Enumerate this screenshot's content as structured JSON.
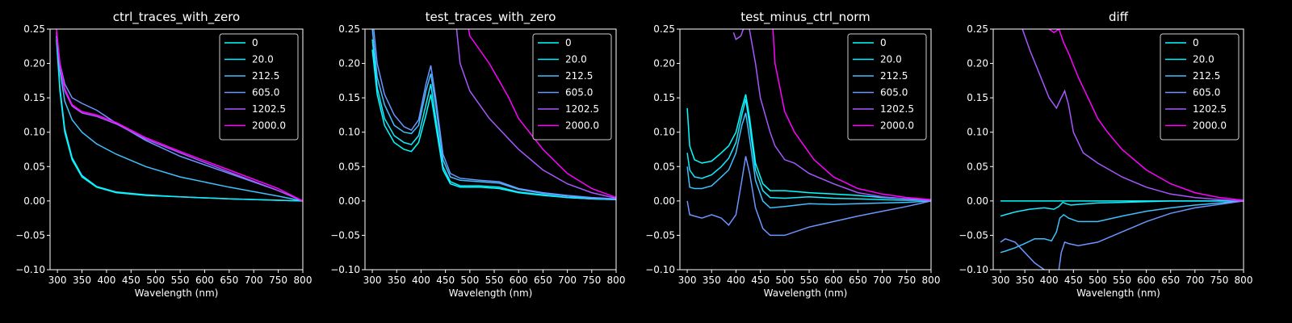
{
  "chart_data": [
    {
      "type": "line",
      "title": "ctrl_traces_with_zero",
      "xlabel": "Wavelength (nm)",
      "ylabel": "",
      "xlim": [
        285,
        800
      ],
      "ylim": [
        -0.1,
        0.25
      ],
      "xticks": [
        300,
        350,
        400,
        450,
        500,
        550,
        600,
        650,
        700,
        750,
        800
      ],
      "yticks": [
        -0.1,
        -0.05,
        0.0,
        0.05,
        0.1,
        0.15,
        0.2,
        0.25
      ],
      "ytick_labels": [
        "−0.10",
        "−0.05",
        "0.00",
        "0.05",
        "0.10",
        "0.15",
        "0.20",
        "0.25"
      ],
      "legend_position": "top-right",
      "series": [
        {
          "name": "0",
          "color": "#00ffff",
          "x": [
            298,
            305,
            315,
            330,
            350,
            380,
            420,
            480,
            550,
            650,
            750,
            800
          ],
          "y": [
            0.235,
            0.16,
            0.1,
            0.06,
            0.035,
            0.02,
            0.012,
            0.008,
            0.006,
            0.003,
            0.001,
            0.0
          ]
        },
        {
          "name": "20.0",
          "color": "#15eaff",
          "x": [
            298,
            305,
            315,
            330,
            350,
            380,
            420,
            480,
            550,
            650,
            750,
            800
          ],
          "y": [
            0.24,
            0.165,
            0.105,
            0.063,
            0.037,
            0.021,
            0.013,
            0.009,
            0.006,
            0.003,
            0.001,
            0.0
          ]
        },
        {
          "name": "212.5",
          "color": "#3fc0ff",
          "x": [
            298,
            305,
            315,
            330,
            350,
            380,
            420,
            480,
            550,
            650,
            750,
            800
          ],
          "y": [
            0.24,
            0.19,
            0.145,
            0.118,
            0.1,
            0.083,
            0.068,
            0.05,
            0.035,
            0.02,
            0.007,
            0.0
          ]
        },
        {
          "name": "605.0",
          "color": "#6996ff",
          "x": [
            298,
            305,
            315,
            330,
            350,
            380,
            420,
            480,
            550,
            650,
            750,
            800
          ],
          "y": [
            0.24,
            0.2,
            0.17,
            0.15,
            0.142,
            0.132,
            0.113,
            0.088,
            0.065,
            0.04,
            0.015,
            0.0
          ]
        },
        {
          "name": "1202.5",
          "color": "#a857ff",
          "x": [
            298,
            305,
            315,
            330,
            350,
            380,
            420,
            480,
            550,
            650,
            750,
            800
          ],
          "y": [
            0.245,
            0.195,
            0.16,
            0.138,
            0.128,
            0.123,
            0.112,
            0.09,
            0.07,
            0.042,
            0.015,
            0.0
          ]
        },
        {
          "name": "2000.0",
          "color": "#ff00ff",
          "x": [
            298,
            305,
            315,
            330,
            350,
            380,
            420,
            480,
            550,
            650,
            750,
            800
          ],
          "y": [
            0.25,
            0.2,
            0.163,
            0.14,
            0.13,
            0.125,
            0.114,
            0.092,
            0.072,
            0.045,
            0.018,
            0.0
          ]
        }
      ]
    },
    {
      "type": "line",
      "title": "test_traces_with_zero",
      "xlabel": "Wavelength (nm)",
      "ylabel": "",
      "xlim": [
        285,
        800
      ],
      "ylim": [
        -0.1,
        0.25
      ],
      "xticks": [
        300,
        350,
        400,
        450,
        500,
        550,
        600,
        650,
        700,
        750,
        800
      ],
      "yticks": [
        -0.1,
        -0.05,
        0.0,
        0.05,
        0.1,
        0.15,
        0.2,
        0.25
      ],
      "ytick_labels": [
        "−0.10",
        "−0.05",
        "0.00",
        "0.05",
        "0.10",
        "0.15",
        "0.20",
        "0.25"
      ],
      "legend_position": "top-right",
      "series": [
        {
          "name": "0",
          "color": "#00ffff",
          "x": [
            300,
            310,
            325,
            345,
            365,
            380,
            395,
            410,
            420,
            430,
            445,
            460,
            480,
            520,
            560,
            600,
            650,
            700,
            750,
            800
          ],
          "y": [
            0.22,
            0.155,
            0.11,
            0.085,
            0.075,
            0.072,
            0.085,
            0.125,
            0.155,
            0.11,
            0.045,
            0.025,
            0.02,
            0.02,
            0.018,
            0.012,
            0.008,
            0.005,
            0.003,
            0.002
          ]
        },
        {
          "name": "20.0",
          "color": "#15eaff",
          "x": [
            300,
            310,
            325,
            345,
            365,
            380,
            395,
            410,
            420,
            430,
            445,
            460,
            480,
            520,
            560,
            600,
            650,
            700,
            750,
            800
          ],
          "y": [
            0.235,
            0.165,
            0.12,
            0.095,
            0.085,
            0.082,
            0.095,
            0.14,
            0.17,
            0.12,
            0.05,
            0.028,
            0.022,
            0.022,
            0.02,
            0.013,
            0.009,
            0.005,
            0.003,
            0.002
          ]
        },
        {
          "name": "212.5",
          "color": "#3fc0ff",
          "x": [
            300,
            310,
            325,
            345,
            365,
            380,
            395,
            410,
            420,
            430,
            445,
            460,
            480,
            520,
            560,
            600,
            650,
            700,
            750,
            800
          ],
          "y": [
            0.25,
            0.18,
            0.14,
            0.11,
            0.1,
            0.098,
            0.11,
            0.16,
            0.185,
            0.14,
            0.06,
            0.035,
            0.03,
            0.028,
            0.026,
            0.017,
            0.011,
            0.007,
            0.004,
            0.002
          ]
        },
        {
          "name": "605.0",
          "color": "#6996ff",
          "x": [
            300,
            310,
            325,
            345,
            365,
            380,
            395,
            410,
            420,
            430,
            445,
            460,
            480,
            520,
            560,
            600,
            650,
            700,
            750,
            800
          ],
          "y": [
            0.27,
            0.2,
            0.155,
            0.125,
            0.108,
            0.103,
            0.118,
            0.17,
            0.197,
            0.15,
            0.068,
            0.04,
            0.033,
            0.03,
            0.028,
            0.018,
            0.012,
            0.008,
            0.005,
            0.003
          ]
        },
        {
          "name": "1202.5",
          "color": "#a857ff",
          "x": [
            470,
            480,
            500,
            520,
            540,
            560,
            580,
            600,
            650,
            700,
            750,
            800
          ],
          "y": [
            0.27,
            0.2,
            0.16,
            0.14,
            0.12,
            0.105,
            0.09,
            0.075,
            0.045,
            0.025,
            0.012,
            0.004
          ]
        },
        {
          "name": "2000.0",
          "color": "#ff00ff",
          "x": [
            495,
            500,
            520,
            540,
            560,
            580,
            600,
            650,
            700,
            750,
            800
          ],
          "y": [
            0.26,
            0.24,
            0.22,
            0.2,
            0.175,
            0.15,
            0.12,
            0.075,
            0.04,
            0.018,
            0.005
          ]
        }
      ]
    },
    {
      "type": "line",
      "title": "test_minus_ctrl_norm",
      "xlabel": "Wavelength (nm)",
      "ylabel": "",
      "xlim": [
        285,
        800
      ],
      "ylim": [
        -0.1,
        0.25
      ],
      "xticks": [
        300,
        350,
        400,
        450,
        500,
        550,
        600,
        650,
        700,
        750,
        800
      ],
      "yticks": [
        -0.1,
        -0.05,
        0.0,
        0.05,
        0.1,
        0.15,
        0.2,
        0.25
      ],
      "ytick_labels": [
        "−0.10",
        "−0.05",
        "0.00",
        "0.05",
        "0.10",
        "0.15",
        "0.20",
        "0.25"
      ],
      "legend_position": "top-right",
      "series": [
        {
          "name": "0",
          "color": "#00ffff",
          "x": [
            300,
            305,
            315,
            330,
            350,
            370,
            385,
            400,
            412,
            420,
            428,
            440,
            455,
            470,
            500,
            550,
            600,
            650,
            700,
            750,
            800
          ],
          "y": [
            0.135,
            0.08,
            0.06,
            0.055,
            0.058,
            0.07,
            0.08,
            0.1,
            0.135,
            0.155,
            0.12,
            0.055,
            0.025,
            0.015,
            0.015,
            0.012,
            0.01,
            0.008,
            0.005,
            0.003,
            0.002
          ]
        },
        {
          "name": "20.0",
          "color": "#15eaff",
          "x": [
            300,
            305,
            315,
            330,
            350,
            370,
            385,
            400,
            412,
            420,
            428,
            440,
            455,
            470,
            500,
            550,
            600,
            650,
            700,
            750,
            800
          ],
          "y": [
            0.07,
            0.045,
            0.035,
            0.033,
            0.038,
            0.05,
            0.062,
            0.085,
            0.125,
            0.148,
            0.11,
            0.045,
            0.015,
            0.005,
            0.004,
            0.006,
            0.004,
            0.003,
            0.002,
            0.001,
            0.001
          ]
        },
        {
          "name": "212.5",
          "color": "#3fc0ff",
          "x": [
            300,
            305,
            315,
            330,
            350,
            370,
            385,
            400,
            412,
            420,
            428,
            440,
            455,
            470,
            500,
            550,
            600,
            650,
            700,
            750,
            800
          ],
          "y": [
            0.05,
            0.02,
            0.018,
            0.018,
            0.022,
            0.035,
            0.045,
            0.07,
            0.11,
            0.128,
            0.09,
            0.03,
            0.0,
            -0.01,
            -0.008,
            -0.004,
            -0.005,
            -0.004,
            -0.003,
            -0.002,
            0.0
          ]
        },
        {
          "name": "605.0",
          "color": "#6996ff",
          "x": [
            300,
            305,
            315,
            330,
            350,
            370,
            385,
            400,
            412,
            420,
            428,
            440,
            455,
            470,
            500,
            550,
            600,
            650,
            700,
            750,
            800
          ],
          "y": [
            0.0,
            -0.02,
            -0.022,
            -0.025,
            -0.02,
            -0.025,
            -0.035,
            -0.02,
            0.03,
            0.065,
            0.04,
            -0.01,
            -0.04,
            -0.05,
            -0.05,
            -0.038,
            -0.03,
            -0.022,
            -0.015,
            -0.008,
            0.0
          ]
        },
        {
          "name": "1202.5",
          "color": "#a857ff",
          "x": [
            395,
            400,
            410,
            420,
            425,
            440,
            450,
            470,
            480,
            500,
            520,
            550,
            600,
            650,
            700,
            750,
            800
          ],
          "y": [
            0.245,
            0.235,
            0.24,
            0.26,
            0.26,
            0.2,
            0.15,
            0.1,
            0.08,
            0.06,
            0.055,
            0.04,
            0.025,
            0.012,
            0.006,
            0.003,
            0.001
          ]
        },
        {
          "name": "2000.0",
          "color": "#ff00ff",
          "x": [
            475,
            480,
            500,
            520,
            540,
            560,
            600,
            650,
            700,
            750,
            800
          ],
          "y": [
            0.26,
            0.2,
            0.13,
            0.1,
            0.08,
            0.06,
            0.035,
            0.018,
            0.01,
            0.005,
            0.002
          ]
        }
      ]
    },
    {
      "type": "line",
      "title": "diff",
      "xlabel": "Wavelength (nm)",
      "ylabel": "",
      "xlim": [
        285,
        800
      ],
      "ylim": [
        -0.1,
        0.25
      ],
      "xticks": [
        300,
        350,
        400,
        450,
        500,
        550,
        600,
        650,
        700,
        750,
        800
      ],
      "yticks": [
        -0.1,
        -0.05,
        0.0,
        0.05,
        0.1,
        0.15,
        0.2,
        0.25
      ],
      "ytick_labels": [
        "−0.10",
        "−0.05",
        "0.00",
        "0.05",
        "0.10",
        "0.15",
        "0.20",
        "0.25"
      ],
      "legend_position": "top-right",
      "series": [
        {
          "name": "0",
          "color": "#00ffff",
          "x": [
            300,
            800
          ],
          "y": [
            0.0,
            0.0
          ]
        },
        {
          "name": "20.0",
          "color": "#15eaff",
          "x": [
            300,
            310,
            330,
            360,
            390,
            410,
            420,
            428,
            435,
            445,
            460,
            500,
            550,
            600,
            650,
            700,
            750,
            800
          ],
          "y": [
            -0.022,
            -0.02,
            -0.016,
            -0.012,
            -0.01,
            -0.012,
            -0.008,
            -0.002,
            -0.004,
            -0.006,
            -0.005,
            -0.003,
            -0.002,
            -0.001,
            0.0,
            0.0,
            0.0,
            0.0
          ]
        },
        {
          "name": "212.5",
          "color": "#3fc0ff",
          "x": [
            300,
            310,
            330,
            350,
            370,
            390,
            405,
            415,
            422,
            430,
            440,
            460,
            500,
            550,
            600,
            650,
            700,
            750,
            800
          ],
          "y": [
            -0.075,
            -0.073,
            -0.068,
            -0.062,
            -0.055,
            -0.055,
            -0.058,
            -0.045,
            -0.025,
            -0.02,
            -0.025,
            -0.03,
            -0.03,
            -0.022,
            -0.015,
            -0.01,
            -0.006,
            -0.003,
            0.0
          ]
        },
        {
          "name": "605.0",
          "color": "#6996ff",
          "x": [
            300,
            310,
            330,
            350,
            370,
            390,
            405,
            418,
            425,
            432,
            440,
            460,
            500,
            550,
            600,
            650,
            700,
            750,
            800
          ],
          "y": [
            -0.06,
            -0.055,
            -0.06,
            -0.075,
            -0.09,
            -0.1,
            -0.11,
            -0.11,
            -0.075,
            -0.06,
            -0.062,
            -0.065,
            -0.06,
            -0.045,
            -0.03,
            -0.018,
            -0.01,
            -0.005,
            0.0
          ]
        },
        {
          "name": "1202.5",
          "color": "#a857ff",
          "x": [
            345,
            360,
            380,
            400,
            415,
            425,
            432,
            440,
            450,
            470,
            500,
            550,
            600,
            650,
            700,
            750,
            800
          ],
          "y": [
            0.25,
            0.22,
            0.185,
            0.15,
            0.135,
            0.15,
            0.16,
            0.14,
            0.1,
            0.07,
            0.055,
            0.035,
            0.02,
            0.01,
            0.005,
            0.002,
            0.0
          ]
        },
        {
          "name": "2000.0",
          "color": "#ff00ff",
          "x": [
            400,
            410,
            420,
            430,
            440,
            460,
            480,
            500,
            520,
            550,
            600,
            650,
            700,
            750,
            800
          ],
          "y": [
            0.25,
            0.245,
            0.25,
            0.23,
            0.215,
            0.18,
            0.15,
            0.12,
            0.1,
            0.075,
            0.045,
            0.025,
            0.012,
            0.005,
            0.001
          ]
        }
      ]
    }
  ]
}
